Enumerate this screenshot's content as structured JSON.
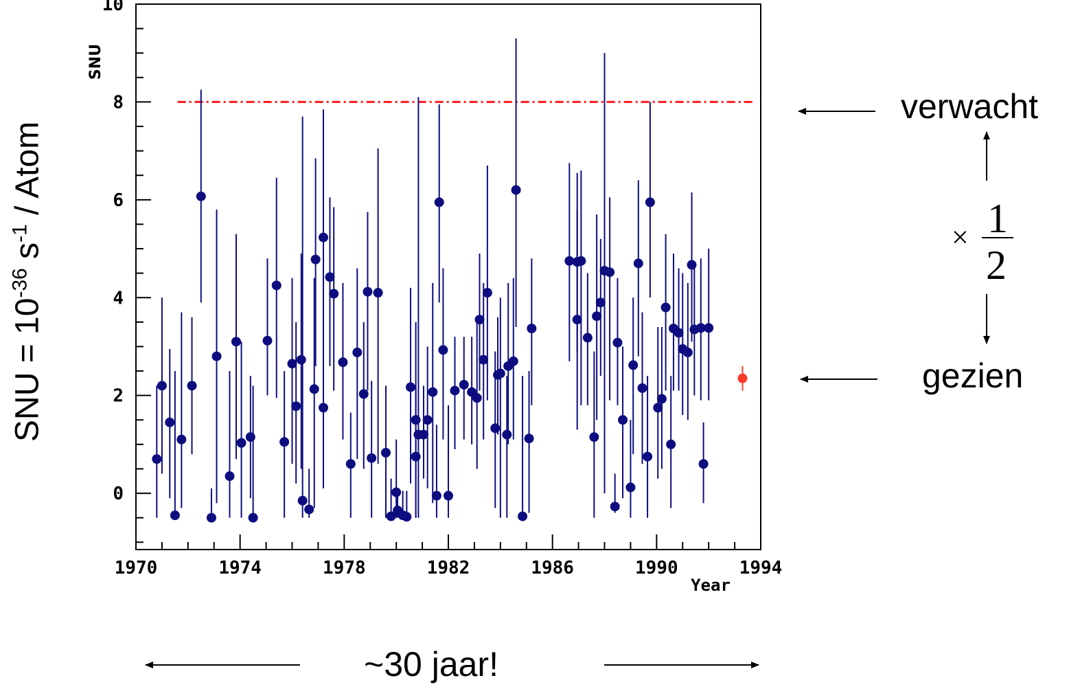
{
  "chart_data": {
    "type": "scatter",
    "title": "",
    "xlabel": "Year",
    "ylabel": "SNU",
    "xlim": [
      1970,
      1994
    ],
    "ylim": [
      -1.15,
      10
    ],
    "x_ticks": [
      1970,
      1974,
      1978,
      1982,
      1986,
      1990,
      1994
    ],
    "y_ticks": [
      0,
      2,
      4,
      6,
      8,
      10
    ],
    "grid": false,
    "reference_line": {
      "y": 8.0,
      "color": "#ff1a1a",
      "style": "dash-dot"
    },
    "series": [
      {
        "color": "#0d0d80",
        "points": [
          {
            "x": 1970.8,
            "y": 0.7,
            "lo": -0.5,
            "hi": 2.2
          },
          {
            "x": 1971.0,
            "y": 2.2,
            "lo": 0.4,
            "hi": 4.0
          },
          {
            "x": 1971.3,
            "y": 1.45,
            "lo": -0.1,
            "hi": 2.95
          },
          {
            "x": 1971.5,
            "y": -0.45,
            "lo": -0.5,
            "hi": 2.5
          },
          {
            "x": 1971.75,
            "y": 1.1,
            "lo": -0.3,
            "hi": 3.7
          },
          {
            "x": 1972.15,
            "y": 2.2,
            "lo": 0.8,
            "hi": 3.6
          },
          {
            "x": 1972.5,
            "y": 6.07,
            "lo": 3.9,
            "hi": 8.25
          },
          {
            "x": 1972.9,
            "y": -0.5,
            "lo": -0.5,
            "hi": 0.1
          },
          {
            "x": 1973.1,
            "y": 2.8,
            "lo": -0.2,
            "hi": 5.8
          },
          {
            "x": 1973.6,
            "y": 0.35,
            "lo": -0.5,
            "hi": 2.5
          },
          {
            "x": 1973.85,
            "y": 3.1,
            "lo": 0.7,
            "hi": 5.3
          },
          {
            "x": 1974.05,
            "y": 1.03,
            "lo": -0.5,
            "hi": 3.1
          },
          {
            "x": 1974.4,
            "y": 1.15,
            "lo": -0.1,
            "hi": 2.4
          },
          {
            "x": 1974.5,
            "y": -0.5,
            "lo": -0.5,
            "hi": 2.2
          },
          {
            "x": 1975.05,
            "y": 3.12,
            "lo": 2.0,
            "hi": 4.8
          },
          {
            "x": 1975.4,
            "y": 4.25,
            "lo": 1.95,
            "hi": 6.45
          },
          {
            "x": 1975.7,
            "y": 1.05,
            "lo": -0.5,
            "hi": 2.5
          },
          {
            "x": 1976.0,
            "y": 2.65,
            "lo": 0.6,
            "hi": 4.4
          },
          {
            "x": 1976.15,
            "y": 1.78,
            "lo": 0.2,
            "hi": 3.5
          },
          {
            "x": 1976.35,
            "y": 2.73,
            "lo": 0.5,
            "hi": 4.9
          },
          {
            "x": 1976.4,
            "y": -0.15,
            "lo": -0.5,
            "hi": 7.7
          },
          {
            "x": 1976.65,
            "y": -0.33,
            "lo": -0.5,
            "hi": 0.5
          },
          {
            "x": 1976.85,
            "y": 2.13,
            "lo": -0.3,
            "hi": 4.4
          },
          {
            "x": 1976.9,
            "y": 4.78,
            "lo": 2.6,
            "hi": 6.85
          },
          {
            "x": 1977.2,
            "y": 5.23,
            "lo": 2.7,
            "hi": 7.85
          },
          {
            "x": 1977.2,
            "y": 1.75,
            "lo": 0.1,
            "hi": 3.5
          },
          {
            "x": 1977.45,
            "y": 4.42,
            "lo": 2.6,
            "hi": 6.05
          },
          {
            "x": 1977.6,
            "y": 4.08,
            "lo": 2.1,
            "hi": 5.85
          },
          {
            "x": 1977.95,
            "y": 2.68,
            "lo": 1.1,
            "hi": 4.3
          },
          {
            "x": 1978.25,
            "y": 0.6,
            "lo": -0.5,
            "hi": 1.65
          },
          {
            "x": 1978.5,
            "y": 2.88,
            "lo": 0.7,
            "hi": 4.6
          },
          {
            "x": 1978.75,
            "y": 2.03,
            "lo": 0.5,
            "hi": 3.5
          },
          {
            "x": 1978.9,
            "y": 4.12,
            "lo": 2.1,
            "hi": 5.75
          },
          {
            "x": 1979.05,
            "y": 0.72,
            "lo": -0.5,
            "hi": 2.3
          },
          {
            "x": 1979.3,
            "y": 4.1,
            "lo": 0.6,
            "hi": 7.05
          },
          {
            "x": 1979.6,
            "y": 0.83,
            "lo": -0.5,
            "hi": 2.2
          },
          {
            "x": 1979.8,
            "y": -0.47,
            "lo": -0.5,
            "hi": 0.3
          },
          {
            "x": 1980.0,
            "y": 0.02,
            "lo": -0.5,
            "hi": 1.1
          },
          {
            "x": 1980.05,
            "y": -0.35,
            "lo": -0.5,
            "hi": 0.0
          },
          {
            "x": 1980.25,
            "y": -0.45,
            "lo": -0.5,
            "hi": 0.05
          },
          {
            "x": 1980.4,
            "y": -0.48,
            "lo": -0.5,
            "hi": 0.05
          },
          {
            "x": 1980.55,
            "y": 2.17,
            "lo": 0.2,
            "hi": 4.2
          },
          {
            "x": 1980.75,
            "y": 0.75,
            "lo": -0.5,
            "hi": 2.15
          },
          {
            "x": 1980.75,
            "y": 1.5,
            "lo": -0.5,
            "hi": 3.5
          },
          {
            "x": 1980.85,
            "y": 1.2,
            "lo": -0.5,
            "hi": 8.1
          },
          {
            "x": 1981.05,
            "y": 1.2,
            "lo": 0.3,
            "hi": 2.2
          },
          {
            "x": 1981.2,
            "y": 1.5,
            "lo": 0.1,
            "hi": 3.0
          },
          {
            "x": 1981.4,
            "y": 2.07,
            "lo": -0.2,
            "hi": 4.3
          },
          {
            "x": 1981.55,
            "y": -0.05,
            "lo": -0.5,
            "hi": 1.4
          },
          {
            "x": 1981.65,
            "y": 5.95,
            "lo": 3.9,
            "hi": 7.95
          },
          {
            "x": 1981.8,
            "y": 2.93,
            "lo": 1.1,
            "hi": 4.6
          },
          {
            "x": 1982.0,
            "y": -0.05,
            "lo": -0.5,
            "hi": 1.8
          },
          {
            "x": 1982.25,
            "y": 2.1,
            "lo": 0.9,
            "hi": 3.2
          },
          {
            "x": 1982.6,
            "y": 2.22,
            "lo": 1.1,
            "hi": 3.2
          },
          {
            "x": 1982.9,
            "y": 2.07,
            "lo": 1.0,
            "hi": 3.2
          },
          {
            "x": 1983.1,
            "y": 1.95,
            "lo": 0.5,
            "hi": 3.5
          },
          {
            "x": 1983.2,
            "y": 3.55,
            "lo": 2.1,
            "hi": 4.9
          },
          {
            "x": 1983.35,
            "y": 2.73,
            "lo": 1.1,
            "hi": 4.3
          },
          {
            "x": 1983.5,
            "y": 4.1,
            "lo": 1.9,
            "hi": 6.7
          },
          {
            "x": 1983.8,
            "y": 1.33,
            "lo": -0.3,
            "hi": 2.9
          },
          {
            "x": 1983.9,
            "y": 2.42,
            "lo": 1.2,
            "hi": 3.6
          },
          {
            "x": 1984.0,
            "y": 2.45,
            "lo": -0.5,
            "hi": 4.0
          },
          {
            "x": 1984.25,
            "y": 1.2,
            "lo": -0.5,
            "hi": 2.4
          },
          {
            "x": 1984.3,
            "y": 2.6,
            "lo": 1.0,
            "hi": 4.3
          },
          {
            "x": 1984.5,
            "y": 2.7,
            "lo": 1.1,
            "hi": 4.4
          },
          {
            "x": 1984.6,
            "y": 6.2,
            "lo": 3.4,
            "hi": 9.3
          },
          {
            "x": 1984.85,
            "y": -0.47,
            "lo": -0.5,
            "hi": 2.4
          },
          {
            "x": 1985.1,
            "y": 1.12,
            "lo": -0.4,
            "hi": 2.5
          },
          {
            "x": 1985.2,
            "y": 3.37,
            "lo": 1.8,
            "hi": 4.8
          },
          {
            "x": 1986.65,
            "y": 4.75,
            "lo": 2.7,
            "hi": 6.75
          },
          {
            "x": 1986.95,
            "y": 3.55,
            "lo": 1.3,
            "hi": 5.8
          },
          {
            "x": 1986.95,
            "y": 4.73,
            "lo": 2.9,
            "hi": 6.55
          },
          {
            "x": 1987.1,
            "y": 4.75,
            "lo": 1.8,
            "hi": 6.6
          },
          {
            "x": 1987.35,
            "y": 3.18,
            "lo": 1.8,
            "hi": 4.5
          },
          {
            "x": 1987.6,
            "y": 1.15,
            "lo": -0.5,
            "hi": 2.9
          },
          {
            "x": 1987.7,
            "y": 3.62,
            "lo": 1.5,
            "hi": 5.7
          },
          {
            "x": 1987.85,
            "y": 3.9,
            "lo": 2.4,
            "hi": 5.2
          },
          {
            "x": 1988.0,
            "y": 4.55,
            "lo": 0.0,
            "hi": 9.0
          },
          {
            "x": 1988.2,
            "y": 4.52,
            "lo": 1.9,
            "hi": 6.05
          },
          {
            "x": 1988.4,
            "y": -0.27,
            "lo": -0.4,
            "hi": 0.4
          },
          {
            "x": 1988.5,
            "y": 3.08,
            "lo": 1.8,
            "hi": 4.4
          },
          {
            "x": 1988.7,
            "y": 1.5,
            "lo": -0.1,
            "hi": 3.0
          },
          {
            "x": 1989.0,
            "y": 0.12,
            "lo": -0.5,
            "hi": 1.5
          },
          {
            "x": 1989.1,
            "y": 2.62,
            "lo": 0.8,
            "hi": 4.0
          },
          {
            "x": 1989.3,
            "y": 4.7,
            "lo": 2.8,
            "hi": 6.4
          },
          {
            "x": 1989.45,
            "y": 2.15,
            "lo": 0.6,
            "hi": 3.7
          },
          {
            "x": 1989.65,
            "y": 0.75,
            "lo": -0.5,
            "hi": 2.4
          },
          {
            "x": 1989.75,
            "y": 5.95,
            "lo": 4.0,
            "hi": 8.0
          },
          {
            "x": 1990.05,
            "y": 1.75,
            "lo": 0.3,
            "hi": 3.4
          },
          {
            "x": 1990.2,
            "y": 1.93,
            "lo": 0.5,
            "hi": 3.4
          },
          {
            "x": 1990.35,
            "y": 3.8,
            "lo": 2.1,
            "hi": 5.3
          },
          {
            "x": 1990.55,
            "y": 1.0,
            "lo": -0.3,
            "hi": 2.4
          },
          {
            "x": 1990.65,
            "y": 3.37,
            "lo": 2.1,
            "hi": 4.9
          },
          {
            "x": 1990.85,
            "y": 3.28,
            "lo": 2.1,
            "hi": 4.6
          },
          {
            "x": 1991.0,
            "y": 2.95,
            "lo": 1.6,
            "hi": 4.5
          },
          {
            "x": 1991.2,
            "y": 2.88,
            "lo": 1.5,
            "hi": 4.3
          },
          {
            "x": 1991.35,
            "y": 4.67,
            "lo": 3.1,
            "hi": 6.15
          },
          {
            "x": 1991.45,
            "y": 3.35,
            "lo": 2.0,
            "hi": 4.7
          },
          {
            "x": 1991.7,
            "y": 3.38,
            "lo": 1.9,
            "hi": 4.8
          },
          {
            "x": 1991.8,
            "y": 0.6,
            "lo": -0.2,
            "hi": 1.45
          },
          {
            "x": 1992.0,
            "y": 3.38,
            "lo": 1.9,
            "hi": 5.0
          }
        ]
      },
      {
        "color": "#ff3a2a",
        "points": [
          {
            "x": 1993.3,
            "y": 2.35,
            "lo": 2.1,
            "hi": 2.6
          }
        ]
      }
    ]
  },
  "annotations": {
    "y_axis_big_label_parts": {
      "base": "SNU = 10",
      "exp1": "-36",
      "mid": " s",
      "exp2": "-1",
      "tail": " / Atom"
    },
    "expected_label": "verwacht",
    "seen_label": "gezien",
    "factor_symbol": "×",
    "factor_numerator": "1",
    "factor_denominator": "2",
    "duration_label": "~30 jaar!"
  }
}
